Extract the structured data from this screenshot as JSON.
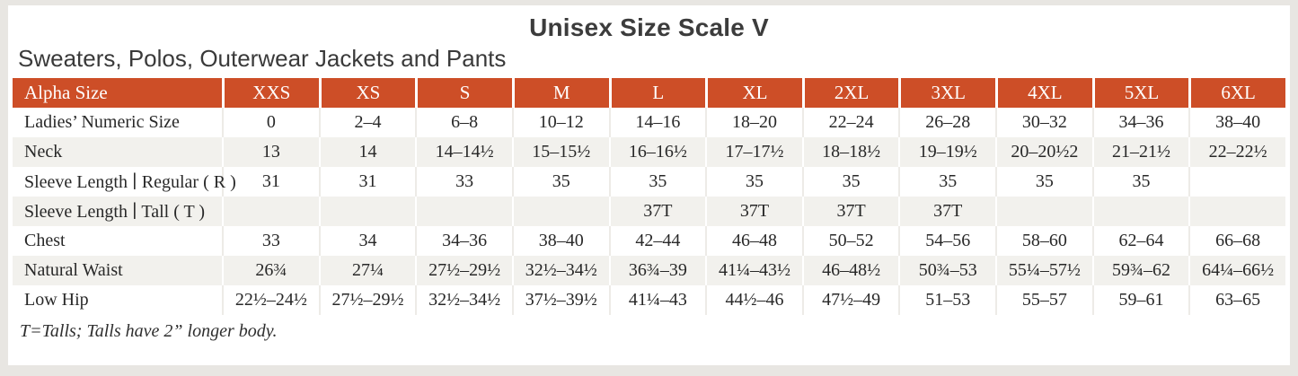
{
  "page": {
    "title": "Unisex Size Scale V",
    "subtitle": "Sweaters, Polos, Outerwear Jackets and Pants",
    "footnote": "T=Talls; Talls have 2” longer body."
  },
  "colors": {
    "header_bg": "#cd4e27",
    "header_text": "#ffffff",
    "stripe_bg": "#f2f1ed",
    "body_text": "#282828",
    "frame": "#e8e6e2"
  },
  "chart_data": {
    "type": "table",
    "columns": [
      "Alpha Size",
      "XXS",
      "XS",
      "S",
      "M",
      "L",
      "XL",
      "2XL",
      "3XL",
      "4XL",
      "5XL",
      "6XL"
    ],
    "rows": [
      {
        "label": "Ladies’ Numeric Size",
        "values": [
          "0",
          "2–4",
          "6–8",
          "10–12",
          "14–16",
          "18–20",
          "22–24",
          "26–28",
          "30–32",
          "34–36",
          "38–40"
        ]
      },
      {
        "label": "Neck",
        "values": [
          "13",
          "14",
          "14–14½",
          "15–15½",
          "16–16½",
          "17–17½",
          "18–18½",
          "19–19½",
          "20–20½2",
          "21–21½",
          "22–22½"
        ]
      },
      {
        "label": "Sleeve Length ∣ Regular ( R )",
        "values": [
          "31",
          "31",
          "33",
          "35",
          "35",
          "35",
          "35",
          "35",
          "35",
          "35",
          ""
        ]
      },
      {
        "label": "Sleeve Length ∣ Tall ( T )",
        "values": [
          "",
          "",
          "",
          "",
          "37T",
          "37T",
          "37T",
          "37T",
          "",
          "",
          ""
        ]
      },
      {
        "label": "Chest",
        "values": [
          "33",
          "34",
          "34–36",
          "38–40",
          "42–44",
          "46–48",
          "50–52",
          "54–56",
          "58–60",
          "62–64",
          "66–68"
        ]
      },
      {
        "label": "Natural Waist",
        "values": [
          "26¾",
          "27¼",
          "27½–29½",
          "32½–34½",
          "36¾–39",
          "41¼–43½",
          "46–48½",
          "50¾–53",
          "55¼–57½",
          "59¾–62",
          "64¼–66½"
        ]
      },
      {
        "label": "Low Hip",
        "values": [
          "22½–24½",
          "27½–29½",
          "32½–34½",
          "37½–39½",
          "41¼–43",
          "44½–46",
          "47½–49",
          "51–53",
          "55–57",
          "59–61",
          "63–65"
        ]
      }
    ]
  }
}
